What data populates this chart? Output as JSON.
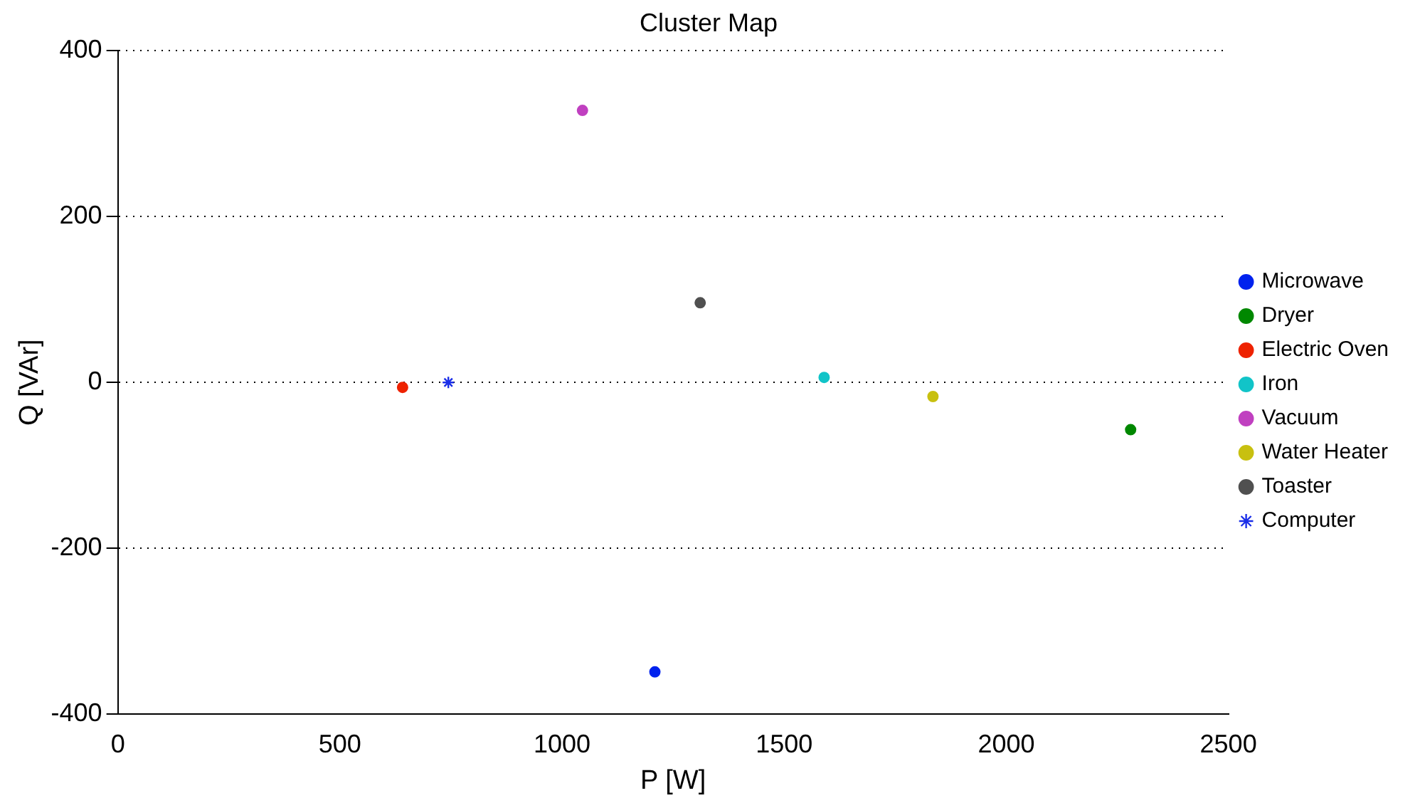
{
  "chart_data": {
    "type": "scatter",
    "title": "Cluster Map",
    "xlabel": "P [W]",
    "ylabel": "Q [VAr]",
    "xlim": [
      0,
      2500
    ],
    "xticks": [
      0,
      500,
      1000,
      1500,
      2000,
      2500
    ],
    "ylim": [
      -400,
      400
    ],
    "yticks": [
      -400,
      -200,
      0,
      200,
      400
    ],
    "grid": "y",
    "legend": "right",
    "marker": "circle",
    "series": [
      {
        "name": "Microwave",
        "color": "#0022ee",
        "x": [
          1209
        ],
        "values": [
          -349
        ]
      },
      {
        "name": "Dryer",
        "color": "#008800",
        "x": [
          2280
        ],
        "values": [
          -57
        ]
      },
      {
        "name": "Electric Oven",
        "color": "#ee2200",
        "x": [
          641
        ],
        "values": [
          -6
        ]
      },
      {
        "name": "Iron",
        "color": "#11c4c8",
        "x": [
          1590
        ],
        "values": [
          6
        ]
      },
      {
        "name": "Vacuum",
        "color": "#c040c0",
        "x": [
          1046
        ],
        "values": [
          328
        ]
      },
      {
        "name": "Water Heater",
        "color": "#c8c010",
        "x": [
          1835
        ],
        "values": [
          -17
        ]
      },
      {
        "name": "Toaster",
        "color": "#505050",
        "x": [
          1311
        ],
        "values": [
          96
        ]
      },
      {
        "name": "Computer",
        "color": "#1a2ee8",
        "x": [
          744
        ],
        "values": [
          0
        ],
        "marker": "cross"
      }
    ]
  }
}
